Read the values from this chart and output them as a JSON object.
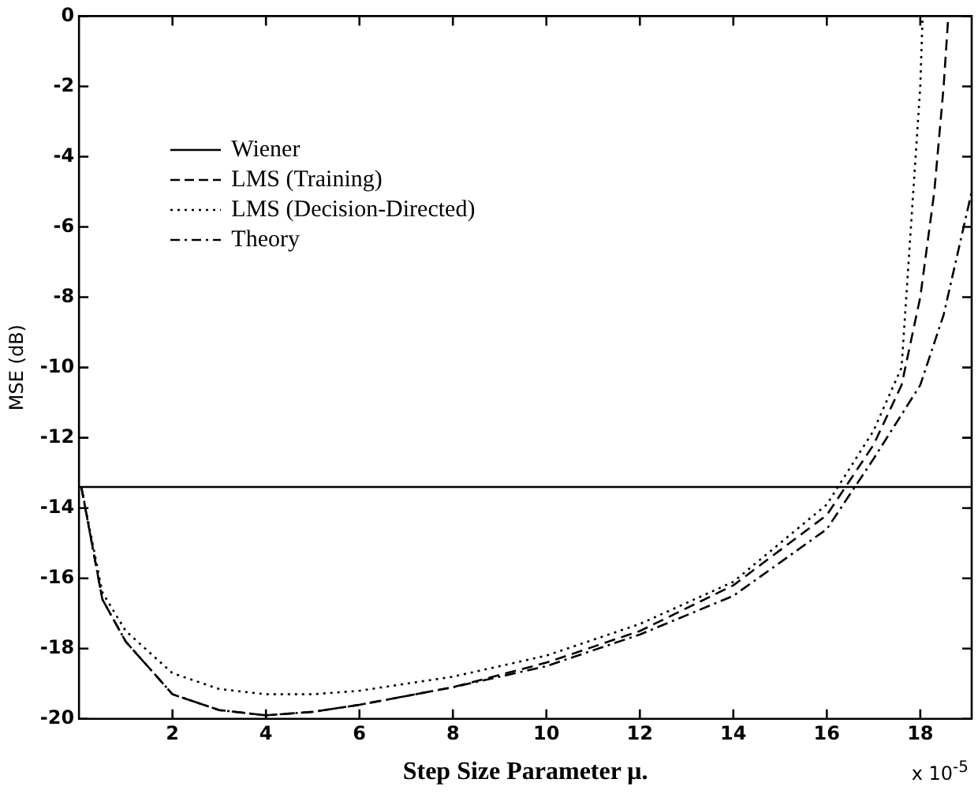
{
  "chart_data": {
    "type": "line",
    "xlabel": "Step Size Parameter μ.",
    "ylabel": "MSE (dB)",
    "xlim": [
      0,
      19.1
    ],
    "xticks": [
      2,
      4,
      6,
      8,
      10,
      12,
      14,
      16,
      18
    ],
    "ylim": [
      -20,
      0
    ],
    "yticks": [
      -20,
      -18,
      -16,
      -14,
      -12,
      -10,
      -8,
      -6,
      -4,
      -2,
      0
    ],
    "grid": false,
    "legend": "top left",
    "marker": "none",
    "annotations": [
      "x 10$^{-5}$"
    ],
    "series": [
      {
        "name": "Wiener",
        "color": "#000000",
        "line_style": "solid",
        "x": [
          0,
          19.1
        ],
        "values": [
          -13.4,
          -13.4
        ]
      },
      {
        "name": "LMS (Training)",
        "color": "#000000",
        "line_style": "dashed",
        "x": [
          0.05,
          0.5,
          1,
          2,
          3,
          4,
          5,
          6,
          8,
          10,
          12,
          14,
          16,
          17,
          17.6,
          18,
          18.3,
          18.5,
          18.6
        ],
        "values": [
          -13.4,
          -16.6,
          -17.8,
          -19.3,
          -19.75,
          -19.9,
          -19.8,
          -19.6,
          -19.1,
          -18.4,
          -17.5,
          -16.2,
          -14.2,
          -12.2,
          -10.5,
          -8,
          -5,
          -2,
          0
        ]
      },
      {
        "name": "LMS (Decision-Directed)",
        "color": "#000000",
        "line_style": "dotted",
        "x": [
          0.05,
          0.5,
          1,
          2,
          3,
          4,
          5,
          6,
          8,
          10,
          12,
          14,
          16,
          17,
          17.6,
          17.8,
          18,
          18.05
        ],
        "values": [
          -13.4,
          -16.4,
          -17.5,
          -18.7,
          -19.15,
          -19.3,
          -19.3,
          -19.2,
          -18.8,
          -18.2,
          -17.3,
          -16.1,
          -13.9,
          -11.8,
          -10,
          -6,
          -2,
          0
        ]
      },
      {
        "name": "Theory",
        "color": "#000000",
        "line_style": "dashdot",
        "x": [
          0.05,
          0.5,
          1,
          2,
          3,
          4,
          5,
          6,
          8,
          10,
          12,
          14,
          16,
          17,
          18,
          18.5,
          19.1
        ],
        "values": [
          -13.4,
          -16.6,
          -17.8,
          -19.3,
          -19.75,
          -19.9,
          -19.8,
          -19.6,
          -19.1,
          -18.5,
          -17.6,
          -16.5,
          -14.6,
          -12.6,
          -10.5,
          -8.5,
          -5
        ]
      }
    ]
  }
}
